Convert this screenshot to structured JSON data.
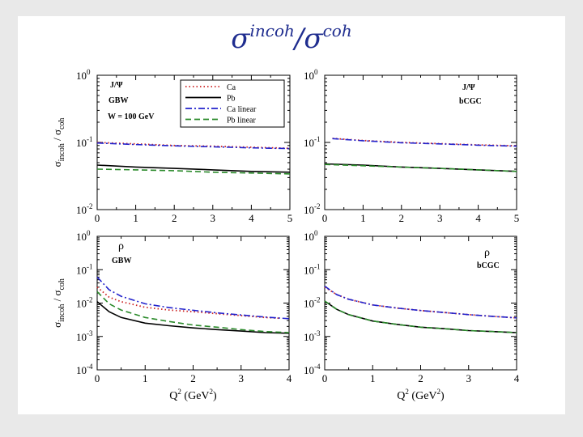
{
  "slide": {
    "title_main1": "σ",
    "title_sup1": "incoh",
    "title_slash": "/",
    "title_main2": "σ",
    "title_sup2": "coh"
  },
  "legend": {
    "items": [
      {
        "label": "Ca",
        "color": "#cc2222",
        "dash": "1.5,3"
      },
      {
        "label": "Pb",
        "color": "#000000",
        "dash": ""
      },
      {
        "label": "Ca linear",
        "color": "#2222cc",
        "dash": "8,3,2,3"
      },
      {
        "label": "Pb linear",
        "color": "#2a8a2a",
        "dash": "7,4"
      }
    ]
  },
  "chart_data": [
    {
      "type": "line",
      "log_y": true,
      "xlim": [
        0,
        5
      ],
      "ylim": [
        0.01,
        1
      ],
      "xticks": [
        "0",
        "1",
        "2",
        "3",
        "4",
        "5"
      ],
      "yticks": [
        "10",
        "10",
        "10"
      ],
      "ytick_exponents": [
        "0",
        "-1",
        "-2"
      ],
      "ylabel": "σincoh / σcoh",
      "annotations": [
        "J/Ψ",
        "GBW",
        "W = 100 GeV"
      ],
      "series": [
        {
          "name": "Ca",
          "color": "#cc2222",
          "x": [
            0,
            1,
            2,
            3,
            4,
            5
          ],
          "values": [
            0.1,
            0.095,
            0.09,
            0.088,
            0.085,
            0.082
          ]
        },
        {
          "name": "Pb",
          "color": "#000000",
          "x": [
            0,
            1,
            2,
            3,
            4,
            5
          ],
          "values": [
            0.046,
            0.043,
            0.041,
            0.039,
            0.037,
            0.036
          ]
        },
        {
          "name": "Ca linear",
          "color": "#2222cc",
          "x": [
            0,
            1,
            2,
            3,
            4,
            5
          ],
          "values": [
            0.098,
            0.093,
            0.089,
            0.086,
            0.083,
            0.081
          ]
        },
        {
          "name": "Pb linear",
          "color": "#2a8a2a",
          "x": [
            0,
            1,
            2,
            3,
            4,
            5
          ],
          "values": [
            0.04,
            0.039,
            0.038,
            0.036,
            0.035,
            0.034
          ]
        }
      ]
    },
    {
      "type": "line",
      "log_y": true,
      "xlim": [
        0,
        5
      ],
      "ylim": [
        0.01,
        1
      ],
      "xticks": [
        "0",
        "1",
        "2",
        "3",
        "4",
        "5"
      ],
      "yticks": [
        "10",
        "10",
        "10"
      ],
      "ytick_exponents": [
        "0",
        "-1",
        "-2"
      ],
      "ylabel": "",
      "annotations": [
        "J/Ψ",
        "bCGC"
      ],
      "series": [
        {
          "name": "Ca",
          "color": "#cc2222",
          "x": [
            0.2,
            1,
            2,
            3,
            4,
            5
          ],
          "values": [
            0.115,
            0.107,
            0.1,
            0.096,
            0.092,
            0.089
          ]
        },
        {
          "name": "Pb",
          "color": "#000000",
          "x": [
            0,
            1,
            2,
            3,
            4,
            5
          ],
          "values": [
            0.048,
            0.046,
            0.043,
            0.041,
            0.039,
            0.037
          ]
        },
        {
          "name": "Ca linear",
          "color": "#2222cc",
          "x": [
            0.2,
            1,
            2,
            3,
            4,
            5
          ],
          "values": [
            0.114,
            0.106,
            0.099,
            0.095,
            0.091,
            0.088
          ]
        },
        {
          "name": "Pb linear",
          "color": "#2a8a2a",
          "x": [
            0,
            1,
            2,
            3,
            4,
            5
          ],
          "values": [
            0.047,
            0.045,
            0.043,
            0.041,
            0.039,
            0.037
          ]
        }
      ]
    },
    {
      "type": "line",
      "log_y": true,
      "xlim": [
        0,
        4
      ],
      "ylim": [
        0.0001,
        1
      ],
      "xticks": [
        "0",
        "1",
        "2",
        "3",
        "4"
      ],
      "yticks": [
        "10",
        "10",
        "10",
        "10",
        "10"
      ],
      "ytick_exponents": [
        "0",
        "-1",
        "-2",
        "-3",
        "-4"
      ],
      "ylabel": "σincoh / σcoh",
      "xlabel": "Q2 (GeV2)",
      "annotations": [
        "ρ",
        "GBW"
      ],
      "series": [
        {
          "name": "Ca",
          "color": "#cc2222",
          "x": [
            0,
            0.25,
            0.5,
            1,
            1.5,
            2,
            2.5,
            3,
            3.5,
            3.8
          ],
          "values": [
            0.03,
            0.015,
            0.011,
            0.0075,
            0.0062,
            0.0055,
            0.0048,
            0.0042,
            0.0037,
            0.0035
          ]
        },
        {
          "name": "Pb",
          "color": "#000000",
          "x": [
            0,
            0.25,
            0.5,
            1,
            1.5,
            2,
            2.5,
            3,
            3.5,
            4
          ],
          "values": [
            0.011,
            0.0055,
            0.0037,
            0.0025,
            0.0021,
            0.0018,
            0.0016,
            0.00145,
            0.0013,
            0.00125
          ]
        },
        {
          "name": "Ca linear",
          "color": "#2222cc",
          "x": [
            0,
            0.25,
            0.5,
            1,
            1.5,
            2,
            2.5,
            3,
            3.5,
            4
          ],
          "values": [
            0.06,
            0.025,
            0.016,
            0.0095,
            0.0073,
            0.0061,
            0.0051,
            0.0044,
            0.0038,
            0.0034
          ]
        },
        {
          "name": "Pb linear",
          "color": "#2a8a2a",
          "x": [
            0,
            0.25,
            0.5,
            1,
            1.5,
            2,
            2.5,
            3,
            3.5,
            4
          ],
          "values": [
            0.022,
            0.0095,
            0.0062,
            0.0037,
            0.0028,
            0.0022,
            0.0019,
            0.0016,
            0.0014,
            0.0013
          ]
        }
      ]
    },
    {
      "type": "line",
      "log_y": true,
      "xlim": [
        0,
        4
      ],
      "ylim": [
        0.0001,
        1
      ],
      "xticks": [
        "0",
        "1",
        "2",
        "3",
        "4"
      ],
      "yticks": [
        "10",
        "10",
        "10",
        "10",
        "10"
      ],
      "ytick_exponents": [
        "0",
        "-1",
        "-2",
        "-3",
        "-4"
      ],
      "ylabel": "",
      "xlabel": "Q2 (GeV2)",
      "annotations": [
        "ρ",
        "bCGC"
      ],
      "series": [
        {
          "name": "Ca",
          "color": "#cc2222",
          "x": [
            0,
            0.25,
            0.5,
            1,
            1.5,
            2,
            2.5,
            3,
            3.5,
            4
          ],
          "values": [
            0.03,
            0.018,
            0.013,
            0.0088,
            0.0071,
            0.006,
            0.0052,
            0.0045,
            0.004,
            0.0036
          ]
        },
        {
          "name": "Pb",
          "color": "#000000",
          "x": [
            0,
            0.25,
            0.5,
            1,
            1.5,
            2,
            2.5,
            3,
            3.5,
            4
          ],
          "values": [
            0.0115,
            0.0065,
            0.0045,
            0.0029,
            0.0023,
            0.0019,
            0.0017,
            0.0015,
            0.0014,
            0.0013
          ]
        },
        {
          "name": "Ca linear",
          "color": "#2222cc",
          "x": [
            0,
            0.25,
            0.5,
            1,
            1.5,
            2,
            2.5,
            3,
            3.5,
            4
          ],
          "values": [
            0.032,
            0.018,
            0.013,
            0.0088,
            0.0071,
            0.006,
            0.0052,
            0.0045,
            0.004,
            0.0036
          ]
        },
        {
          "name": "Pb linear",
          "color": "#2a8a2a",
          "x": [
            0,
            0.25,
            0.5,
            1,
            1.5,
            2,
            2.5,
            3,
            3.5,
            4
          ],
          "values": [
            0.0115,
            0.0065,
            0.0045,
            0.0029,
            0.0023,
            0.0019,
            0.0017,
            0.0015,
            0.0014,
            0.0013
          ]
        }
      ]
    }
  ]
}
